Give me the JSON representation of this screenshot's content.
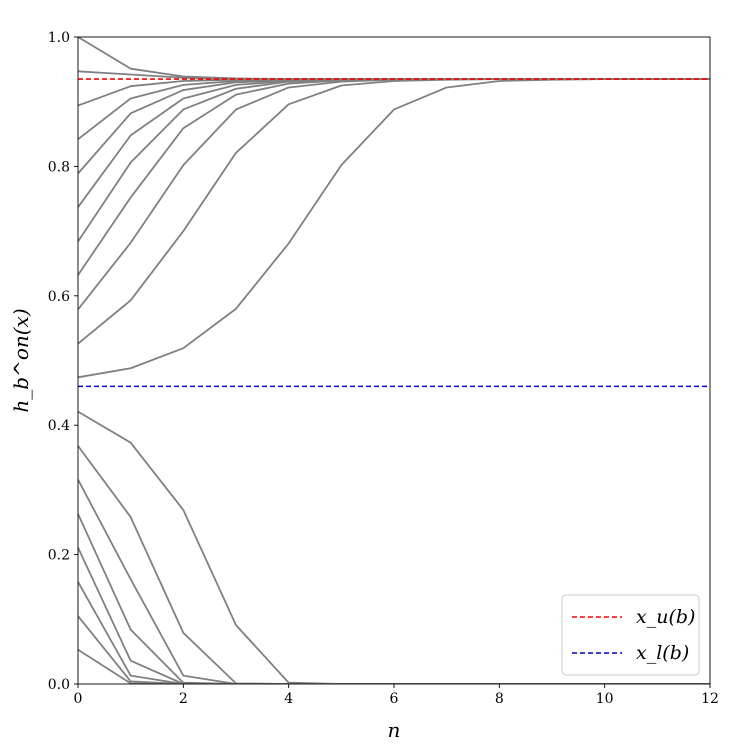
{
  "chart_data": {
    "type": "line",
    "title": "",
    "xlabel": "n",
    "ylabel": "h_b^on(x)",
    "xlim": [
      0,
      12
    ],
    "ylim": [
      0.0,
      1.0
    ],
    "x_ticks": [
      0,
      2,
      4,
      6,
      8,
      10,
      12
    ],
    "y_ticks": [
      0.0,
      0.2,
      0.4,
      0.6,
      0.8,
      1.0
    ],
    "x_tick_labels": [
      "0",
      "2",
      "4",
      "6",
      "8",
      "10",
      "12"
    ],
    "y_tick_labels": [
      "0.0",
      "0.2",
      "0.4",
      "0.6",
      "0.8",
      "1.0"
    ],
    "grid": false,
    "legend_position": "bottom-right",
    "line_color": "#808080",
    "trajectories": [
      [
        1.0,
        0.951,
        0.939,
        0.936,
        0.935,
        0.935,
        0.935,
        0.935,
        0.935,
        0.935,
        0.935,
        0.935,
        0.935
      ],
      [
        0.947,
        0.942,
        0.937,
        0.935,
        0.935,
        0.935,
        0.935,
        0.935,
        0.935,
        0.935,
        0.935,
        0.935,
        0.935
      ],
      [
        0.894,
        0.924,
        0.932,
        0.934,
        0.935,
        0.935,
        0.935,
        0.935,
        0.935,
        0.935,
        0.935,
        0.935,
        0.935
      ],
      [
        0.842,
        0.905,
        0.926,
        0.932,
        0.934,
        0.935,
        0.935,
        0.935,
        0.935,
        0.935,
        0.935,
        0.935,
        0.935
      ],
      [
        0.789,
        0.882,
        0.918,
        0.93,
        0.933,
        0.935,
        0.935,
        0.935,
        0.935,
        0.935,
        0.935,
        0.935,
        0.935
      ],
      [
        0.737,
        0.848,
        0.905,
        0.926,
        0.932,
        0.934,
        0.935,
        0.935,
        0.935,
        0.935,
        0.935,
        0.935,
        0.935
      ],
      [
        0.684,
        0.806,
        0.888,
        0.92,
        0.931,
        0.934,
        0.935,
        0.935,
        0.935,
        0.935,
        0.935,
        0.935,
        0.935
      ],
      [
        0.632,
        0.752,
        0.859,
        0.911,
        0.928,
        0.933,
        0.935,
        0.935,
        0.935,
        0.935,
        0.935,
        0.935,
        0.935
      ],
      [
        0.579,
        0.682,
        0.802,
        0.888,
        0.922,
        0.931,
        0.934,
        0.935,
        0.935,
        0.935,
        0.935,
        0.935,
        0.935
      ],
      [
        0.526,
        0.593,
        0.7,
        0.821,
        0.896,
        0.925,
        0.932,
        0.934,
        0.935,
        0.935,
        0.935,
        0.935,
        0.935
      ],
      [
        0.474,
        0.488,
        0.519,
        0.58,
        0.681,
        0.802,
        0.888,
        0.922,
        0.932,
        0.934,
        0.935,
        0.935,
        0.935
      ],
      [
        0.421,
        0.373,
        0.269,
        0.091,
        0.002,
        0.0,
        0.0,
        0.0,
        0.0,
        0.0,
        0.0,
        0.0,
        0.0
      ],
      [
        0.368,
        0.258,
        0.079,
        0.001,
        0.0,
        0.0,
        0.0,
        0.0,
        0.0,
        0.0,
        0.0,
        0.0,
        0.0
      ],
      [
        0.316,
        0.162,
        0.013,
        0.0,
        0.0,
        0.0,
        0.0,
        0.0,
        0.0,
        0.0,
        0.0,
        0.0,
        0.0
      ],
      [
        0.263,
        0.084,
        0.002,
        0.0,
        0.0,
        0.0,
        0.0,
        0.0,
        0.0,
        0.0,
        0.0,
        0.0,
        0.0
      ],
      [
        0.211,
        0.036,
        0.0,
        0.0,
        0.0,
        0.0,
        0.0,
        0.0,
        0.0,
        0.0,
        0.0,
        0.0,
        0.0
      ],
      [
        0.158,
        0.013,
        0.0,
        0.0,
        0.0,
        0.0,
        0.0,
        0.0,
        0.0,
        0.0,
        0.0,
        0.0,
        0.0
      ],
      [
        0.105,
        0.004,
        0.0,
        0.0,
        0.0,
        0.0,
        0.0,
        0.0,
        0.0,
        0.0,
        0.0,
        0.0,
        0.0
      ],
      [
        0.053,
        0.001,
        0.0,
        0.0,
        0.0,
        0.0,
        0.0,
        0.0,
        0.0,
        0.0,
        0.0,
        0.0,
        0.0
      ]
    ],
    "reference_lines": [
      {
        "name": "x_u(b)",
        "value": 0.935,
        "color": "#ff0000",
        "style": "dashed"
      },
      {
        "name": "x_l(b)",
        "value": 0.46,
        "color": "#0000cc",
        "style": "dashed"
      }
    ],
    "legend": [
      {
        "label": "x_u(b)",
        "color": "#ff0000"
      },
      {
        "label": "x_l(b)",
        "color": "#0000cc"
      }
    ]
  }
}
